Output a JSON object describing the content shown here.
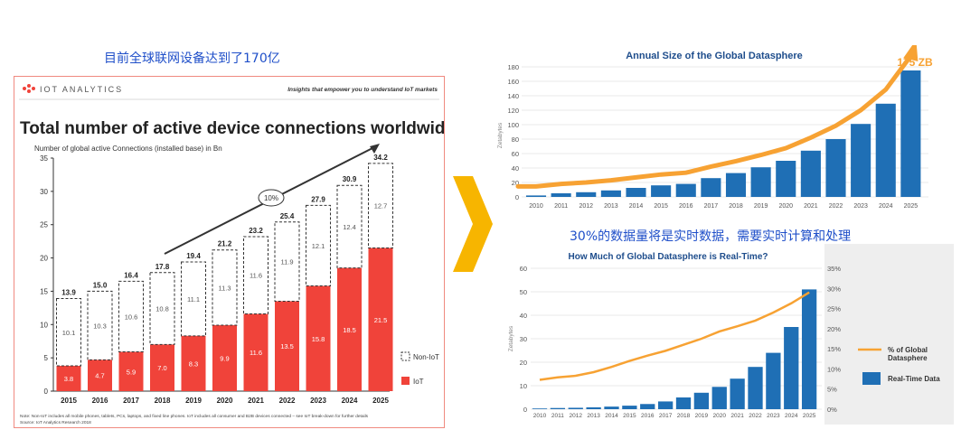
{
  "captions": {
    "left": "目前全球联网设备达到了170亿",
    "right": "30%的数据量将是实时数据，需要实时计算和处理"
  },
  "left_panel": {
    "brand": "IOT ANALYTICS",
    "tagline": "Insights that empower you to understand IoT markets",
    "title": "Total number of active device connections worldwide",
    "subtitle": "Number of global active Connections (installed base) in Bn",
    "growth_label": "10%",
    "note": "Note: Non-IoT includes all mobile phones, tablets, PCs, laptops, and fixed line phones. IoT includes all consumer and B2B devices connected – see IoT break-down for further details",
    "source": "Source: IoT Analytics Research 2018",
    "colors": {
      "iot": "#f0433a",
      "non_iot_border": "#333333",
      "arrow": "#333333"
    }
  },
  "top_panel": {
    "highlight_label": "175 ZB",
    "colors": {
      "bar": "#1f6fb5",
      "curve": "#f7a233",
      "title": "#1e4d8c"
    }
  },
  "bottom_panel": {
    "colors": {
      "bar": "#1f6fb5",
      "line": "#f7a233",
      "title": "#1e4d8c"
    }
  },
  "chart_data": [
    {
      "type": "bar",
      "stacked": true,
      "categories": [
        "2015",
        "2016",
        "2017",
        "2018",
        "2019",
        "2020",
        "2021",
        "2022",
        "2023",
        "2024",
        "2025"
      ],
      "series": [
        {
          "name": "IoT",
          "values": [
            3.8,
            4.7,
            5.9,
            7.0,
            8.3,
            9.9,
            11.6,
            13.5,
            15.8,
            18.5,
            21.5
          ]
        },
        {
          "name": "Non-IoT",
          "values": [
            10.1,
            10.3,
            10.6,
            10.8,
            11.1,
            11.3,
            11.6,
            11.9,
            12.1,
            12.4,
            12.7
          ]
        }
      ],
      "totals": [
        13.9,
        15.0,
        16.4,
        17.8,
        19.4,
        21.2,
        23.2,
        25.4,
        27.9,
        30.9,
        34.2
      ],
      "title": "Total number of active device connections worldwide",
      "ylabel": "",
      "ylim": [
        0,
        35
      ],
      "yticks": [
        0,
        5,
        10,
        15,
        20,
        25,
        30,
        35
      ],
      "legend": "right"
    },
    {
      "type": "bar",
      "title": "Annual Size of the Global Datasphere",
      "ylabel": "Zetabytes",
      "categories": [
        "2010",
        "2011",
        "2012",
        "2013",
        "2014",
        "2015",
        "2016",
        "2017",
        "2018",
        "2019",
        "2020",
        "2021",
        "2022",
        "2023",
        "2024",
        "2025"
      ],
      "values": [
        2,
        5,
        6.5,
        9,
        12.5,
        16,
        18,
        26,
        33,
        41,
        50,
        64,
        80,
        101,
        129,
        175
      ],
      "ylim": [
        0,
        180
      ],
      "yticks": [
        0,
        20,
        40,
        60,
        80,
        100,
        120,
        140,
        160,
        180
      ],
      "grid": true
    },
    {
      "type": "bar",
      "title": "How Much of Global Datasphere is Real-Time?",
      "ylabel": "Zetabytes",
      "categories": [
        "2010",
        "2011",
        "2012",
        "2013",
        "2014",
        "2015",
        "2016",
        "2017",
        "2018",
        "2019",
        "2020",
        "2021",
        "2022",
        "2023",
        "2024",
        "2025"
      ],
      "series": [
        {
          "name": "Real-Time Data",
          "axis": "left",
          "values": [
            0.3,
            0.5,
            0.6,
            0.8,
            1.1,
            1.5,
            2.2,
            3.3,
            5,
            7,
            9.5,
            13,
            18,
            24,
            35,
            51
          ]
        },
        {
          "name": "% of Global Datasphere",
          "axis": "right",
          "type": "line",
          "values": [
            7.3,
            7.9,
            8.3,
            9.2,
            10.5,
            12.0,
            13.3,
            14.5,
            16.0,
            17.5,
            19.3,
            20.6,
            22.0,
            24.0,
            26.3,
            29.0
          ]
        }
      ],
      "ylim": [
        0,
        60
      ],
      "yticks": [
        0,
        10,
        20,
        30,
        40,
        50,
        60
      ],
      "y2lim": [
        0,
        35
      ],
      "y2ticks": [
        "0%",
        "5%",
        "10%",
        "15%",
        "20%",
        "25%",
        "30%",
        "35%"
      ],
      "legend": "right"
    }
  ]
}
